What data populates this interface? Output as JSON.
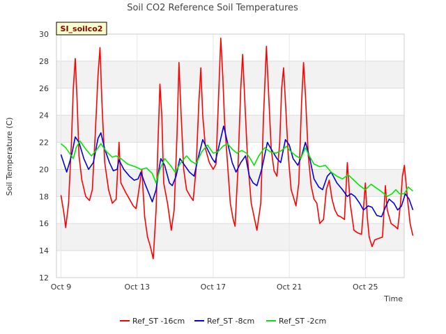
{
  "chart_data": {
    "type": "line",
    "title": "Soil CO2 Reference Soil Temperatures",
    "xlabel": "Time",
    "ylabel": "Soil Temperature (C)",
    "site_badge": "SI_soilco2",
    "x_domain": [
      "Oct 9",
      "Oct 27"
    ],
    "xlim": [
      0,
      18.5
    ],
    "x_ticks": [
      {
        "day": 0,
        "label": "Oct 9"
      },
      {
        "day": 4,
        "label": "Oct 13"
      },
      {
        "day": 8,
        "label": "Oct 17"
      },
      {
        "day": 12,
        "label": "Oct 21"
      },
      {
        "day": 16,
        "label": "Oct 25"
      }
    ],
    "ylim": [
      12,
      30
    ],
    "y_ticks": [
      12,
      14,
      16,
      18,
      20,
      22,
      24,
      26,
      28,
      30
    ],
    "grid": true,
    "background_bands": true,
    "legend_position": "bottom",
    "series": [
      {
        "name": "Ref_ST -16cm",
        "color": "#ff0000",
        "points": [
          [
            0.0,
            18.1
          ],
          [
            0.15,
            16.8
          ],
          [
            0.25,
            15.7
          ],
          [
            0.4,
            17.5
          ],
          [
            0.55,
            22.0
          ],
          [
            0.65,
            26.0
          ],
          [
            0.75,
            28.2
          ],
          [
            0.85,
            25.0
          ],
          [
            0.95,
            21.0
          ],
          [
            1.1,
            19.2
          ],
          [
            1.3,
            18.0
          ],
          [
            1.5,
            17.7
          ],
          [
            1.65,
            18.5
          ],
          [
            1.8,
            22.5
          ],
          [
            1.95,
            27.0
          ],
          [
            2.05,
            29.0
          ],
          [
            2.15,
            25.0
          ],
          [
            2.3,
            20.5
          ],
          [
            2.5,
            18.5
          ],
          [
            2.7,
            17.5
          ],
          [
            2.9,
            17.8
          ],
          [
            3.05,
            22.0
          ],
          [
            3.15,
            19.0
          ],
          [
            3.4,
            18.3
          ],
          [
            3.6,
            17.8
          ],
          [
            3.8,
            17.3
          ],
          [
            3.95,
            17.1
          ],
          [
            4.1,
            18.5
          ],
          [
            4.25,
            20.0
          ],
          [
            4.4,
            16.5
          ],
          [
            4.55,
            15.0
          ],
          [
            4.7,
            14.3
          ],
          [
            4.85,
            13.4
          ],
          [
            5.0,
            17.0
          ],
          [
            5.1,
            22.0
          ],
          [
            5.2,
            26.3
          ],
          [
            5.3,
            24.0
          ],
          [
            5.4,
            19.0
          ],
          [
            5.6,
            17.5
          ],
          [
            5.8,
            15.5
          ],
          [
            5.95,
            17.0
          ],
          [
            6.1,
            22.5
          ],
          [
            6.2,
            27.9
          ],
          [
            6.3,
            24.5
          ],
          [
            6.45,
            20.0
          ],
          [
            6.6,
            18.5
          ],
          [
            6.8,
            18.0
          ],
          [
            6.95,
            17.7
          ],
          [
            7.1,
            20.0
          ],
          [
            7.25,
            25.0
          ],
          [
            7.35,
            27.5
          ],
          [
            7.45,
            24.0
          ],
          [
            7.6,
            21.5
          ],
          [
            7.8,
            20.5
          ],
          [
            8.0,
            20.0
          ],
          [
            8.15,
            20.4
          ],
          [
            8.3,
            26.0
          ],
          [
            8.4,
            29.7
          ],
          [
            8.5,
            27.0
          ],
          [
            8.6,
            23.5
          ],
          [
            8.75,
            20.5
          ],
          [
            8.9,
            17.5
          ],
          [
            9.05,
            16.3
          ],
          [
            9.15,
            15.8
          ],
          [
            9.3,
            20.0
          ],
          [
            9.45,
            26.0
          ],
          [
            9.55,
            28.5
          ],
          [
            9.65,
            25.5
          ],
          [
            9.8,
            21.0
          ],
          [
            10.0,
            17.5
          ],
          [
            10.15,
            16.5
          ],
          [
            10.3,
            15.5
          ],
          [
            10.5,
            17.5
          ],
          [
            10.65,
            24.0
          ],
          [
            10.8,
            29.1
          ],
          [
            10.9,
            26.0
          ],
          [
            11.05,
            21.5
          ],
          [
            11.2,
            19.9
          ],
          [
            11.35,
            19.5
          ],
          [
            11.5,
            22.0
          ],
          [
            11.6,
            26.0
          ],
          [
            11.7,
            27.5
          ],
          [
            11.8,
            25.0
          ],
          [
            11.95,
            21.0
          ],
          [
            12.1,
            18.5
          ],
          [
            12.25,
            17.8
          ],
          [
            12.35,
            17.3
          ],
          [
            12.5,
            19.0
          ],
          [
            12.65,
            25.0
          ],
          [
            12.75,
            27.9
          ],
          [
            12.85,
            25.5
          ],
          [
            13.0,
            21.0
          ],
          [
            13.15,
            18.8
          ],
          [
            13.3,
            17.8
          ],
          [
            13.45,
            17.5
          ],
          [
            13.6,
            16.0
          ],
          [
            13.8,
            16.3
          ],
          [
            13.95,
            18.5
          ],
          [
            14.1,
            19.2
          ],
          [
            14.25,
            17.8
          ],
          [
            14.4,
            17.0
          ],
          [
            14.55,
            16.6
          ],
          [
            14.7,
            16.5
          ],
          [
            14.9,
            16.3
          ],
          [
            15.05,
            20.5
          ],
          [
            15.2,
            17.5
          ],
          [
            15.4,
            15.5
          ],
          [
            15.6,
            15.3
          ],
          [
            15.8,
            15.2
          ],
          [
            16.0,
            19.0
          ],
          [
            16.1,
            16.5
          ],
          [
            16.2,
            15.0
          ],
          [
            16.35,
            14.3
          ],
          [
            16.5,
            14.8
          ],
          [
            16.7,
            14.9
          ],
          [
            16.9,
            15.0
          ],
          [
            17.05,
            18.8
          ],
          [
            17.15,
            17.0
          ],
          [
            17.35,
            16.0
          ],
          [
            17.55,
            15.8
          ],
          [
            17.7,
            15.6
          ],
          [
            17.85,
            17.5
          ],
          [
            17.95,
            19.5
          ],
          [
            18.05,
            20.3
          ],
          [
            18.2,
            18.0
          ],
          [
            18.35,
            16.0
          ],
          [
            18.5,
            15.1
          ]
        ]
      },
      {
        "name": "Ref_ST -8cm",
        "color": "#0000dd",
        "points": [
          [
            0.0,
            21.1
          ],
          [
            0.3,
            19.8
          ],
          [
            0.55,
            21.0
          ],
          [
            0.75,
            22.4
          ],
          [
            0.95,
            22.0
          ],
          [
            1.2,
            20.8
          ],
          [
            1.45,
            20.0
          ],
          [
            1.7,
            20.5
          ],
          [
            1.95,
            22.3
          ],
          [
            2.1,
            22.7
          ],
          [
            2.3,
            21.5
          ],
          [
            2.55,
            20.5
          ],
          [
            2.75,
            19.9
          ],
          [
            2.95,
            20.0
          ],
          [
            3.05,
            20.7
          ],
          [
            3.3,
            20.0
          ],
          [
            3.6,
            19.5
          ],
          [
            3.85,
            19.2
          ],
          [
            4.05,
            19.3
          ],
          [
            4.2,
            19.8
          ],
          [
            4.4,
            19.0
          ],
          [
            4.6,
            18.3
          ],
          [
            4.8,
            17.6
          ],
          [
            5.0,
            18.5
          ],
          [
            5.15,
            20.0
          ],
          [
            5.25,
            20.8
          ],
          [
            5.45,
            20.3
          ],
          [
            5.7,
            19.0
          ],
          [
            5.85,
            18.8
          ],
          [
            6.05,
            19.5
          ],
          [
            6.25,
            20.8
          ],
          [
            6.5,
            20.3
          ],
          [
            6.75,
            19.8
          ],
          [
            7.0,
            19.5
          ],
          [
            7.2,
            20.8
          ],
          [
            7.45,
            22.2
          ],
          [
            7.7,
            21.5
          ],
          [
            7.95,
            20.8
          ],
          [
            8.1,
            20.5
          ],
          [
            8.35,
            22.0
          ],
          [
            8.55,
            23.2
          ],
          [
            8.75,
            22.0
          ],
          [
            9.0,
            20.5
          ],
          [
            9.2,
            19.8
          ],
          [
            9.45,
            20.5
          ],
          [
            9.7,
            21.0
          ],
          [
            9.9,
            19.5
          ],
          [
            10.1,
            19.0
          ],
          [
            10.3,
            18.8
          ],
          [
            10.55,
            20.0
          ],
          [
            10.85,
            22.0
          ],
          [
            11.05,
            21.5
          ],
          [
            11.35,
            20.8
          ],
          [
            11.55,
            20.5
          ],
          [
            11.8,
            22.2
          ],
          [
            12.0,
            21.8
          ],
          [
            12.2,
            20.8
          ],
          [
            12.45,
            20.3
          ],
          [
            12.65,
            21.0
          ],
          [
            12.85,
            22.0
          ],
          [
            13.05,
            21.0
          ],
          [
            13.3,
            19.3
          ],
          [
            13.55,
            18.7
          ],
          [
            13.75,
            18.5
          ],
          [
            14.0,
            19.5
          ],
          [
            14.2,
            19.8
          ],
          [
            14.5,
            19.0
          ],
          [
            14.8,
            18.5
          ],
          [
            15.05,
            18.0
          ],
          [
            15.25,
            18.2
          ],
          [
            15.45,
            18.0
          ],
          [
            15.7,
            17.5
          ],
          [
            15.9,
            17.0
          ],
          [
            16.15,
            17.3
          ],
          [
            16.35,
            17.2
          ],
          [
            16.6,
            16.6
          ],
          [
            16.85,
            16.5
          ],
          [
            17.05,
            17.2
          ],
          [
            17.25,
            17.8
          ],
          [
            17.5,
            17.5
          ],
          [
            17.7,
            17.0
          ],
          [
            17.9,
            17.3
          ],
          [
            18.1,
            18.2
          ],
          [
            18.3,
            17.8
          ],
          [
            18.5,
            17.0
          ]
        ]
      },
      {
        "name": "Ref_ST -2cm",
        "color": "#00e800",
        "points": [
          [
            0.0,
            21.9
          ],
          [
            0.25,
            21.6
          ],
          [
            0.45,
            21.2
          ],
          [
            0.65,
            20.8
          ],
          [
            0.8,
            21.6
          ],
          [
            1.0,
            22.1
          ],
          [
            1.3,
            21.5
          ],
          [
            1.6,
            21.0
          ],
          [
            1.85,
            21.4
          ],
          [
            2.1,
            21.9
          ],
          [
            2.4,
            21.3
          ],
          [
            2.7,
            20.9
          ],
          [
            2.9,
            21.0
          ],
          [
            3.15,
            20.8
          ],
          [
            3.5,
            20.4
          ],
          [
            3.9,
            20.2
          ],
          [
            4.2,
            20.0
          ],
          [
            4.5,
            20.1
          ],
          [
            4.8,
            19.7
          ],
          [
            5.0,
            19.0
          ],
          [
            5.2,
            20.0
          ],
          [
            5.45,
            20.8
          ],
          [
            5.75,
            20.3
          ],
          [
            6.0,
            19.8
          ],
          [
            6.3,
            20.5
          ],
          [
            6.6,
            21.0
          ],
          [
            6.85,
            20.6
          ],
          [
            7.1,
            20.4
          ],
          [
            7.4,
            21.3
          ],
          [
            7.7,
            21.8
          ],
          [
            8.0,
            21.2
          ],
          [
            8.25,
            21.3
          ],
          [
            8.5,
            21.7
          ],
          [
            8.75,
            21.9
          ],
          [
            9.0,
            21.5
          ],
          [
            9.25,
            21.2
          ],
          [
            9.5,
            21.4
          ],
          [
            9.75,
            21.2
          ],
          [
            9.95,
            20.8
          ],
          [
            10.15,
            20.3
          ],
          [
            10.4,
            21.0
          ],
          [
            10.7,
            21.6
          ],
          [
            11.0,
            21.3
          ],
          [
            11.3,
            21.2
          ],
          [
            11.6,
            21.4
          ],
          [
            11.85,
            21.7
          ],
          [
            12.1,
            21.3
          ],
          [
            12.35,
            21.0
          ],
          [
            12.6,
            20.8
          ],
          [
            12.85,
            21.6
          ],
          [
            13.05,
            21.0
          ],
          [
            13.3,
            20.4
          ],
          [
            13.6,
            20.2
          ],
          [
            13.9,
            20.3
          ],
          [
            14.2,
            19.8
          ],
          [
            14.5,
            19.5
          ],
          [
            14.8,
            19.3
          ],
          [
            15.1,
            19.6
          ],
          [
            15.4,
            19.2
          ],
          [
            15.7,
            18.8
          ],
          [
            16.0,
            18.5
          ],
          [
            16.3,
            18.9
          ],
          [
            16.6,
            18.6
          ],
          [
            16.9,
            18.3
          ],
          [
            17.15,
            18.0
          ],
          [
            17.4,
            18.2
          ],
          [
            17.6,
            18.5
          ],
          [
            17.8,
            18.2
          ],
          [
            18.05,
            18.2
          ],
          [
            18.25,
            18.7
          ],
          [
            18.5,
            18.4
          ]
        ]
      }
    ]
  }
}
